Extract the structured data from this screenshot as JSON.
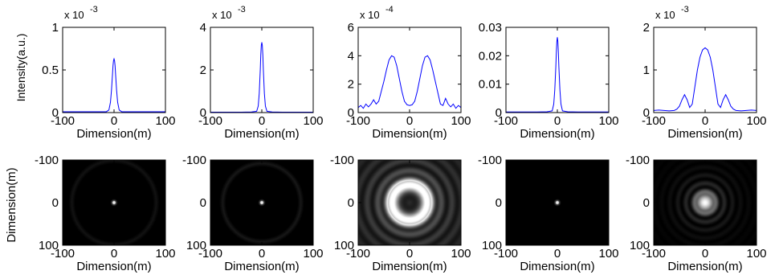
{
  "figure": {
    "ylabel_top": "Intensity(a.u.)",
    "ylabel_bottom": "Dimension(m)"
  },
  "chart_data": [
    {
      "type": "line",
      "row": "top",
      "title": "",
      "xlabel": "Dimension(m)",
      "ylabel": "Intensity(a.u.)",
      "exponent_label": "x 10",
      "exponent_power": "-3",
      "xlim": [
        -100,
        100
      ],
      "ylim": [
        0,
        1
      ],
      "xticks": [
        "-100",
        "0",
        "100"
      ],
      "yticks": [
        "0",
        "0.5",
        "1"
      ],
      "line_color": "#0000ff",
      "x": [
        -100,
        -90,
        -80,
        -70,
        -60,
        -50,
        -40,
        -30,
        -20,
        -15,
        -10,
        -7,
        -5,
        -3,
        -2,
        -1,
        0,
        1,
        2,
        3,
        5,
        7,
        10,
        15,
        20,
        30,
        40,
        50,
        60,
        70,
        80,
        90,
        100
      ],
      "y": [
        0.01,
        0.01,
        0.01,
        0.01,
        0.01,
        0.01,
        0.01,
        0.01,
        0.01,
        0.01,
        0.03,
        0.12,
        0.26,
        0.45,
        0.55,
        0.61,
        0.63,
        0.61,
        0.55,
        0.45,
        0.26,
        0.12,
        0.03,
        0.01,
        0.01,
        0.01,
        0.01,
        0.01,
        0.01,
        0.01,
        0.01,
        0.01,
        0.01
      ]
    },
    {
      "type": "line",
      "row": "top",
      "title": "",
      "xlabel": "Dimension(m)",
      "ylabel": "",
      "exponent_label": "x 10",
      "exponent_power": "-3",
      "xlim": [
        -100,
        100
      ],
      "ylim": [
        0,
        4
      ],
      "xticks": [
        "-100",
        "0",
        "100"
      ],
      "yticks": [
        "0",
        "2",
        "4"
      ],
      "line_color": "#0000ff",
      "x": [
        -100,
        -80,
        -60,
        -40,
        -20,
        -10,
        -7,
        -5,
        -3,
        -2,
        -1,
        0,
        1,
        2,
        3,
        5,
        7,
        10,
        20,
        40,
        60,
        80,
        100
      ],
      "y": [
        0.02,
        0.02,
        0.02,
        0.02,
        0.03,
        0.06,
        0.3,
        0.9,
        2.0,
        2.7,
        3.15,
        3.3,
        3.15,
        2.7,
        2.0,
        0.9,
        0.3,
        0.06,
        0.03,
        0.02,
        0.02,
        0.02,
        0.02
      ]
    },
    {
      "type": "line",
      "row": "top",
      "title": "",
      "xlabel": "Dimension(m)",
      "ylabel": "",
      "exponent_label": "x 10",
      "exponent_power": "-4",
      "xlim": [
        -100,
        100
      ],
      "ylim": [
        0,
        6
      ],
      "xticks": [
        "-100",
        "0",
        "100"
      ],
      "yticks": [
        "0",
        "2",
        "4",
        "6"
      ],
      "line_color": "#0000ff",
      "x": [
        -100,
        -95,
        -90,
        -85,
        -80,
        -75,
        -70,
        -65,
        -60,
        -55,
        -50,
        -45,
        -40,
        -35,
        -30,
        -25,
        -20,
        -15,
        -10,
        -5,
        0,
        5,
        10,
        15,
        20,
        25,
        30,
        35,
        40,
        45,
        50,
        55,
        60,
        65,
        70,
        75,
        80,
        85,
        90,
        95,
        100
      ],
      "y": [
        0.35,
        0.5,
        0.3,
        0.6,
        0.4,
        0.6,
        0.9,
        0.6,
        0.8,
        1.5,
        2.2,
        3.0,
        3.7,
        4.0,
        3.9,
        3.3,
        2.4,
        1.5,
        0.8,
        0.55,
        0.5,
        0.55,
        0.8,
        1.5,
        2.4,
        3.3,
        3.9,
        4.0,
        3.7,
        3.0,
        2.2,
        1.4,
        0.6,
        0.5,
        1.0,
        0.6,
        0.4,
        0.6,
        0.3,
        0.5,
        0.35
      ]
    },
    {
      "type": "line",
      "row": "top",
      "title": "",
      "xlabel": "Dimension(m)",
      "ylabel": "",
      "exponent_label": "",
      "exponent_power": "",
      "xlim": [
        -100,
        100
      ],
      "ylim": [
        0,
        0.03
      ],
      "xticks": [
        "-100",
        "0",
        "100"
      ],
      "yticks": [
        "0",
        "0.01",
        "0.02",
        "0.03"
      ],
      "line_color": "#0000ff",
      "x": [
        -100,
        -80,
        -60,
        -40,
        -20,
        -10,
        -7,
        -5,
        -3,
        -2,
        -1,
        0,
        1,
        2,
        3,
        5,
        7,
        10,
        20,
        40,
        60,
        80,
        100
      ],
      "y": [
        0.0002,
        0.0002,
        0.0002,
        0.0002,
        0.0003,
        0.0006,
        0.003,
        0.008,
        0.016,
        0.021,
        0.025,
        0.0265,
        0.025,
        0.021,
        0.016,
        0.008,
        0.003,
        0.0006,
        0.0003,
        0.0002,
        0.0002,
        0.0002,
        0.0002
      ]
    },
    {
      "type": "line",
      "row": "top",
      "title": "",
      "xlabel": "Dimension(m)",
      "ylabel": "",
      "exponent_label": "x 10",
      "exponent_power": "-3",
      "xlim": [
        -100,
        100
      ],
      "ylim": [
        0,
        2
      ],
      "xticks": [
        "-100",
        "0",
        "100"
      ],
      "yticks": [
        "0",
        "1",
        "2"
      ],
      "line_color": "#0000ff",
      "x": [
        -100,
        -90,
        -80,
        -70,
        -60,
        -55,
        -50,
        -45,
        -40,
        -35,
        -30,
        -25,
        -20,
        -15,
        -10,
        -5,
        0,
        5,
        10,
        15,
        20,
        25,
        30,
        35,
        40,
        45,
        50,
        55,
        60,
        70,
        80,
        90,
        100
      ],
      "y": [
        0.05,
        0.06,
        0.05,
        0.04,
        0.05,
        0.08,
        0.15,
        0.3,
        0.42,
        0.3,
        0.12,
        0.2,
        0.6,
        1.0,
        1.3,
        1.47,
        1.52,
        1.47,
        1.3,
        1.0,
        0.6,
        0.2,
        0.12,
        0.3,
        0.42,
        0.3,
        0.15,
        0.08,
        0.05,
        0.04,
        0.05,
        0.06,
        0.05
      ]
    },
    {
      "type": "heatmap",
      "row": "bottom",
      "pattern": "spot",
      "title": "",
      "xlabel": "Dimension(m)",
      "ylabel": "Dimension(m)",
      "xlim": [
        -100,
        100
      ],
      "ylim": [
        -100,
        100
      ],
      "xticks": [
        "-100",
        "0",
        "100"
      ],
      "yticks": [
        "-100",
        "0",
        "100"
      ],
      "spot_radius": 4,
      "ring_radius": 82,
      "ring_intensity": 0.07
    },
    {
      "type": "heatmap",
      "row": "bottom",
      "pattern": "spot",
      "title": "",
      "xlabel": "Dimension(m)",
      "ylabel": "",
      "xlim": [
        -100,
        100
      ],
      "ylim": [
        -100,
        100
      ],
      "xticks": [
        "-100",
        "0",
        "100"
      ],
      "yticks": [
        "-100",
        "0",
        "100"
      ],
      "spot_radius": 4,
      "ring_radius": 76,
      "ring_intensity": 0.09
    },
    {
      "type": "heatmap",
      "row": "bottom",
      "pattern": "donut",
      "title": "",
      "xlabel": "Dimension(m)",
      "ylabel": "",
      "xlim": [
        -100,
        100
      ],
      "ylim": [
        -100,
        100
      ],
      "xticks": [
        "-100",
        "0",
        "100"
      ],
      "yticks": [
        "-100",
        "0",
        "100"
      ],
      "ring_radius": 34
    },
    {
      "type": "heatmap",
      "row": "bottom",
      "pattern": "spot",
      "title": "",
      "xlabel": "Dimension(m)",
      "ylabel": "",
      "xlim": [
        -100,
        100
      ],
      "ylim": [
        -100,
        100
      ],
      "xticks": [
        "-100",
        "0",
        "100"
      ],
      "yticks": [
        "-100",
        "0",
        "100"
      ],
      "spot_radius": 4,
      "ring_radius": 0,
      "ring_intensity": 0
    },
    {
      "type": "heatmap",
      "row": "bottom",
      "pattern": "rings",
      "title": "",
      "xlabel": "Dimension(m)",
      "ylabel": "",
      "xlim": [
        -100,
        100
      ],
      "ylim": [
        -100,
        100
      ],
      "xticks": [
        "-100",
        "0",
        "100"
      ],
      "yticks": [
        "-100",
        "0",
        "100"
      ],
      "spot_radius": 16
    }
  ]
}
